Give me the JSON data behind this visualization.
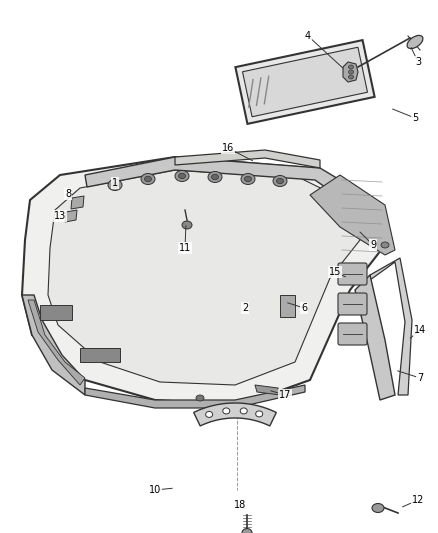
{
  "bg_color": "#ffffff",
  "fig_width": 4.38,
  "fig_height": 5.33,
  "dpi": 100,
  "line_color": "#333333",
  "label_fontsize": 7.0
}
